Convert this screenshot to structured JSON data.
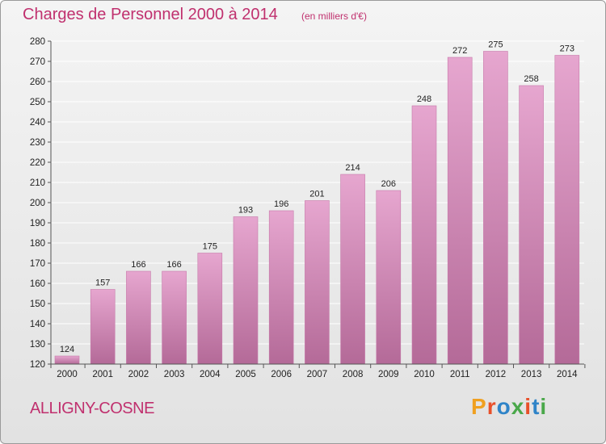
{
  "header": {
    "title": "Charges de Personnel 2000 à 2014",
    "subtitle": "(en milliers d'€)"
  },
  "footer": {
    "commune": "ALLIGNY-COSNE",
    "brand": "Proxiti",
    "brand_colors": [
      "#f0a020",
      "#e8502a",
      "#2f84c8",
      "#4aa84a",
      "#e8502a",
      "#2f84c8",
      "#4aa84a"
    ]
  },
  "colors": {
    "bar_top": "#e6a6cf",
    "bar_bottom": "#b46a98",
    "bar_edge": "#c77aaa",
    "grid": "#ffffff",
    "text_accent": "#c0306e"
  },
  "chart_data": {
    "type": "bar",
    "title": "Charges de Personnel 2000 à 2014",
    "subtitle": "(en milliers d'€)",
    "categories": [
      "2000",
      "2001",
      "2002",
      "2003",
      "2004",
      "2005",
      "2006",
      "2007",
      "2008",
      "2009",
      "2010",
      "2011",
      "2012",
      "2013",
      "2014"
    ],
    "values": [
      124,
      157,
      166,
      166,
      175,
      193,
      196,
      201,
      214,
      206,
      248,
      272,
      275,
      258,
      273
    ],
    "ylim": [
      120,
      280
    ],
    "yticks": [
      120,
      130,
      140,
      150,
      160,
      170,
      180,
      190,
      200,
      210,
      220,
      230,
      240,
      250,
      260,
      270,
      280
    ],
    "grid": true,
    "data_labels": true
  }
}
